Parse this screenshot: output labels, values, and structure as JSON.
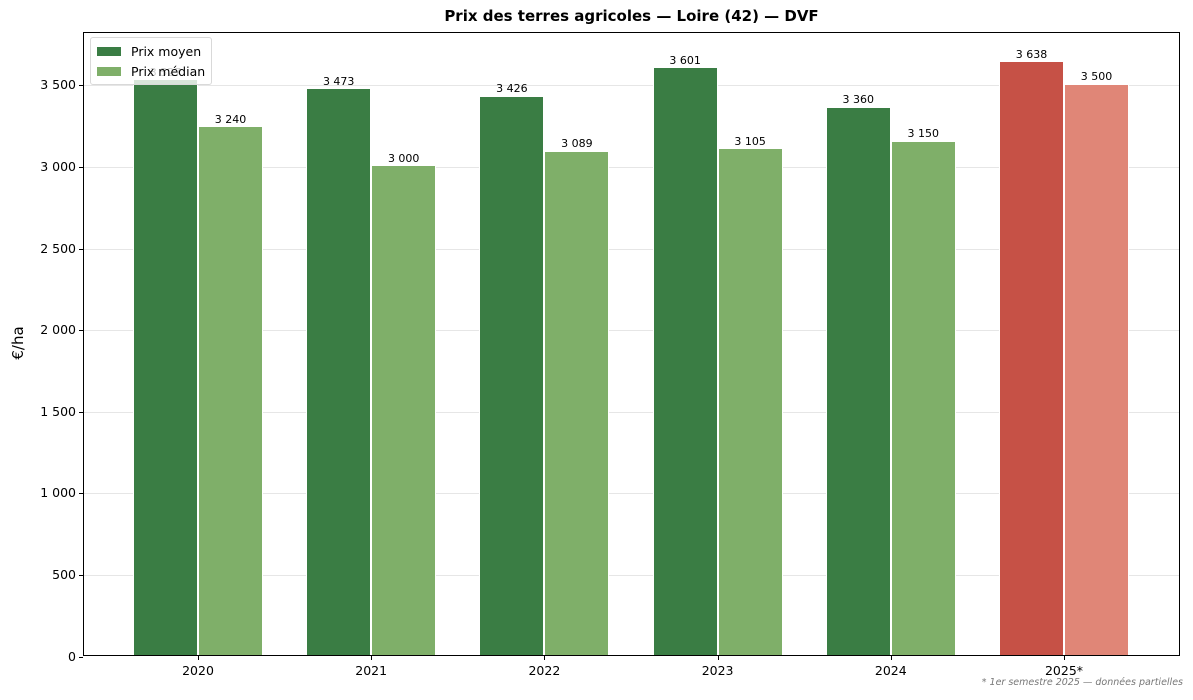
{
  "chart_data": {
    "type": "bar",
    "title": "Prix des terres agricoles — Loire (42) — DVF",
    "xlabel": "",
    "ylabel": "€/ha",
    "ylim": [
      0,
      3820
    ],
    "yticks": [
      0,
      500,
      1000,
      1500,
      2000,
      2500,
      3000,
      3500
    ],
    "ytick_labels": [
      "0",
      "500",
      "1 000",
      "1 500",
      "2 000",
      "2 500",
      "3 000",
      "3 500"
    ],
    "categories": [
      "2020",
      "2021",
      "2022",
      "2023",
      "2024",
      "2025*"
    ],
    "series": [
      {
        "name": "Prix moyen",
        "values": [
          3527,
          3473,
          3426,
          3601,
          3360,
          3638
        ],
        "labels": [
          "3 527",
          "3 473",
          "3 426",
          "3 601",
          "3 360",
          "3 638"
        ],
        "colors": [
          "#3a7d44",
          "#3a7d44",
          "#3a7d44",
          "#3a7d44",
          "#3a7d44",
          "#c65146"
        ]
      },
      {
        "name": "Prix médian",
        "values": [
          3240,
          3000,
          3089,
          3105,
          3150,
          3500
        ],
        "labels": [
          "3 240",
          "3 000",
          "3 089",
          "3 105",
          "3 150",
          "3 500"
        ],
        "colors": [
          "#7faf69",
          "#7faf69",
          "#7faf69",
          "#7faf69",
          "#7faf69",
          "#e08677"
        ]
      }
    ],
    "legend": {
      "position": "upper left",
      "entries": [
        "Prix moyen",
        "Prix médian"
      ],
      "colors": [
        "#3a7d44",
        "#7faf69"
      ]
    },
    "grid": "y",
    "annotations": [
      "* 1er semestre 2025 — données partielles"
    ]
  },
  "footnote": "* 1er semestre 2025 — données partielles"
}
